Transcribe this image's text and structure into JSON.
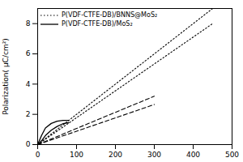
{
  "chart_data": {
    "type": "line",
    "ylabel": "Polarization( μC/cm²)",
    "xlim": [
      0,
      500
    ],
    "ylim": [
      0,
      9
    ],
    "xticks": [
      0,
      100,
      200,
      300,
      400,
      500
    ],
    "yticks": [
      0,
      2,
      4,
      6,
      8
    ],
    "legend": "upper left",
    "series": [
      {
        "name": "P(VDF-CTFE-DB)/BNNS@MoS₂",
        "line_style": "dotted",
        "color": "black",
        "x": [
          0,
          450
        ],
        "values": [
          0.0,
          9.0
        ]
      },
      {
        "line_style": "dotted",
        "color": "black",
        "x": [
          0,
          450
        ],
        "values": [
          0.0,
          8.0
        ]
      },
      {
        "line_style": "dashed",
        "color": "black",
        "x": [
          0,
          300
        ],
        "values": [
          0.0,
          3.2
        ]
      },
      {
        "line_style": "dashed",
        "color": "black",
        "x": [
          0,
          300
        ],
        "values": [
          0.0,
          2.65
        ]
      },
      {
        "name": "P(VDF-CTFE-DB)/MoS₂",
        "line_style": "solid",
        "color": "black",
        "x": [
          0,
          10,
          20,
          35,
          50,
          65,
          80
        ],
        "values": [
          0,
          0.6,
          1.1,
          1.4,
          1.55,
          1.6,
          1.6
        ]
      },
      {
        "line_style": "solid",
        "color": "black",
        "x": [
          0,
          10,
          20,
          35,
          50,
          65,
          80
        ],
        "values": [
          0,
          0.25,
          0.6,
          0.95,
          1.2,
          1.38,
          1.45
        ]
      }
    ]
  }
}
